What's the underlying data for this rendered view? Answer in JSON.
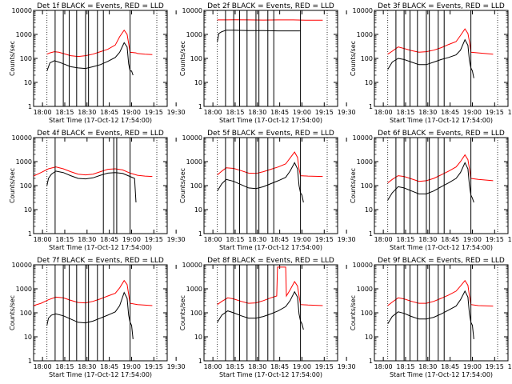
{
  "chart_data": [
    {
      "type": "line",
      "panel": 1,
      "title": "Det 1f  BLACK = Events, RED = LLD",
      "xlabel": "Start Time (17-Oct-12 17:54:00)",
      "ylabel": "Counts/sec",
      "xticks": [
        "18:00",
        "18:15",
        "18:30",
        "18:45",
        "19:00",
        "19:15",
        "19:30"
      ],
      "yticks": [
        "1",
        "10",
        "100",
        "1000",
        "10000"
      ],
      "ylim": [
        1,
        10000
      ],
      "yscale": "log",
      "series": [
        {
          "color": "#ff0000",
          "label": "RED = LLD",
          "x_min": [
            9,
            11,
            14,
            17,
            20,
            25,
            30,
            35,
            40,
            45,
            50,
            55,
            58,
            61,
            63,
            64,
            65,
            69,
            70,
            75,
            80
          ],
          "values": [
            150,
            170,
            190,
            180,
            160,
            130,
            120,
            130,
            150,
            190,
            240,
            360,
            800,
            1500,
            1000,
            420,
            180,
            170,
            160,
            150,
            145
          ]
        },
        {
          "color": "#000000",
          "label": "BLACK = Events",
          "x_min": [
            9,
            11,
            14,
            17,
            20,
            25,
            30,
            35,
            40,
            45,
            50,
            55,
            58,
            61,
            63,
            64,
            65,
            66,
            67
          ],
          "values": [
            30,
            65,
            80,
            70,
            60,
            45,
            40,
            38,
            45,
            55,
            75,
            110,
            180,
            450,
            300,
            60,
            30,
            30,
            20
          ]
        }
      ],
      "vlines_min": [
        14.5,
        20,
        24,
        29,
        35,
        37,
        43,
        47,
        65
      ]
    },
    {
      "type": "line",
      "panel": 2,
      "title": "Det 2f  BLACK = Events, RED = LLD",
      "xlabel": "Start Time (17-Oct-12 17:54:00)",
      "ylabel": "Counts/sec",
      "xticks": [
        "18:00",
        "18:15",
        "18:30",
        "18:45",
        "19:00",
        "19:15",
        "19:30"
      ],
      "yticks": [
        "1",
        "10",
        "100",
        "1000",
        "10000"
      ],
      "ylim": [
        1,
        10000
      ],
      "yscale": "log",
      "series": [
        {
          "color": "#ff0000",
          "label": "RED = LLD",
          "x_min": [
            9,
            15,
            20,
            30,
            40,
            50,
            60,
            70,
            80
          ],
          "values": [
            4000,
            4000,
            4050,
            4000,
            3950,
            4000,
            4000,
            3900,
            3900
          ]
        },
        {
          "color": "#000000",
          "label": "BLACK = Events",
          "x_min": [
            9,
            10,
            12,
            15,
            20,
            30,
            40,
            50,
            60,
            65
          ],
          "values": [
            500,
            1100,
            1300,
            1500,
            1500,
            1450,
            1450,
            1400,
            1400,
            1400
          ]
        }
      ],
      "vlines_min": [
        14.5,
        20,
        24,
        29,
        35,
        37,
        43,
        47,
        65
      ]
    },
    {
      "type": "line",
      "panel": 3,
      "title": "Det 3f  BLACK = Events, RED = LLD",
      "xlabel": "Start Time (17-Oct-12 17:54:00)",
      "ylabel": "Counts/sec",
      "xticks": [
        "18:00",
        "18:15",
        "18:30",
        "18:45",
        "19:00",
        "19:15",
        "19:30"
      ],
      "yticks": [
        "1",
        "10",
        "100",
        "1000",
        "10000"
      ],
      "ylim": [
        1,
        10000
      ],
      "yscale": "log",
      "series": [
        {
          "color": "#ff0000",
          "label": "RED = LLD",
          "x_min": [
            9,
            12,
            16,
            20,
            25,
            30,
            35,
            40,
            45,
            50,
            55,
            58,
            61,
            63,
            64,
            65,
            70,
            80
          ],
          "values": [
            150,
            200,
            300,
            260,
            210,
            180,
            190,
            220,
            280,
            380,
            500,
            900,
            1700,
            1100,
            500,
            180,
            170,
            150
          ]
        },
        {
          "color": "#000000",
          "label": "BLACK = Events",
          "x_min": [
            9,
            12,
            16,
            20,
            25,
            30,
            35,
            40,
            45,
            50,
            55,
            58,
            61,
            63,
            64,
            65,
            66,
            67
          ],
          "values": [
            35,
            70,
            100,
            90,
            70,
            55,
            55,
            70,
            90,
            110,
            140,
            220,
            600,
            350,
            80,
            40,
            30,
            15
          ]
        }
      ],
      "vlines_min": [
        14.5,
        20,
        24,
        29,
        35,
        37,
        43,
        47,
        65
      ]
    },
    {
      "type": "line",
      "panel": 4,
      "title": "Det 4f  BLACK = Events, RED = LLD",
      "xlabel": "Start Time (17-Oct-12 17:54:00)",
      "ylabel": "Counts/sec",
      "xticks": [
        "18:00",
        "18:15",
        "18:30",
        "18:45",
        "19:00",
        "19:15",
        "19:30"
      ],
      "yticks": [
        "1",
        "10",
        "100",
        "1000",
        "10000"
      ],
      "ylim": [
        1,
        10000
      ],
      "yscale": "log",
      "series": [
        {
          "color": "#ff0000",
          "label": "RED = LLD",
          "x_min": [
            0,
            5,
            10,
            15,
            20,
            25,
            30,
            35,
            40,
            45,
            50,
            55,
            60,
            65,
            70,
            75,
            80
          ],
          "values": [
            250,
            350,
            500,
            600,
            500,
            380,
            300,
            280,
            300,
            380,
            480,
            500,
            450,
            330,
            270,
            250,
            240
          ]
        },
        {
          "color": "#000000",
          "label": "BLACK = Events",
          "x_min": [
            9,
            10,
            12,
            15,
            20,
            25,
            30,
            35,
            40,
            45,
            50,
            55,
            60,
            65,
            68,
            69
          ],
          "values": [
            100,
            200,
            300,
            400,
            350,
            260,
            200,
            190,
            210,
            270,
            330,
            350,
            320,
            240,
            200,
            20
          ]
        }
      ],
      "vlines_min": [
        14.5,
        47,
        54,
        56,
        65
      ]
    },
    {
      "type": "line",
      "panel": 5,
      "title": "Det 5f  BLACK = Events, RED = LLD",
      "xlabel": "Start Time (17-Oct-12 17:54:00)",
      "ylabel": "Counts/sec",
      "xticks": [
        "18:00",
        "18:15",
        "18:30",
        "18:45",
        "19:00",
        "19:15",
        "19:30"
      ],
      "yticks": [
        "1",
        "10",
        "100",
        "1000",
        "10000"
      ],
      "ylim": [
        1,
        10000
      ],
      "yscale": "log",
      "series": [
        {
          "color": "#ff0000",
          "label": "RED = LLD",
          "x_min": [
            9,
            12,
            15,
            20,
            25,
            30,
            35,
            40,
            45,
            50,
            55,
            58,
            61,
            63,
            64,
            65,
            70,
            80
          ],
          "values": [
            280,
            400,
            550,
            520,
            420,
            330,
            320,
            380,
            480,
            600,
            800,
            1400,
            2500,
            1500,
            500,
            260,
            250,
            240
          ]
        },
        {
          "color": "#000000",
          "label": "BLACK = Events",
          "x_min": [
            9,
            12,
            15,
            20,
            25,
            30,
            35,
            40,
            45,
            50,
            55,
            58,
            61,
            63,
            64,
            65,
            66,
            67
          ],
          "values": [
            60,
            120,
            180,
            150,
            110,
            80,
            75,
            90,
            120,
            160,
            220,
            400,
            900,
            500,
            100,
            50,
            40,
            20
          ]
        }
      ],
      "vlines_min": [
        14.5,
        20,
        24,
        29,
        35,
        37,
        43,
        47,
        65
      ]
    },
    {
      "type": "line",
      "panel": 6,
      "title": "Det 6f  BLACK = Events, RED = LLD",
      "xlabel": "Start Time (17-Oct-12 17:54:00)",
      "ylabel": "Counts/sec",
      "xticks": [
        "18:00",
        "18:15",
        "18:30",
        "18:45",
        "19:00",
        "19:15",
        "19:30"
      ],
      "yticks": [
        "1",
        "10",
        "100",
        "1000",
        "10000"
      ],
      "ylim": [
        1,
        10000
      ],
      "yscale": "log",
      "series": [
        {
          "color": "#ff0000",
          "label": "RED = LLD",
          "x_min": [
            9,
            12,
            16,
            20,
            25,
            30,
            35,
            40,
            45,
            50,
            55,
            58,
            61,
            63,
            64,
            65,
            70,
            80
          ],
          "values": [
            130,
            180,
            260,
            240,
            190,
            150,
            160,
            200,
            280,
            400,
            600,
            1000,
            1900,
            1200,
            500,
            200,
            180,
            160
          ]
        },
        {
          "color": "#000000",
          "label": "BLACK = Events",
          "x_min": [
            9,
            12,
            16,
            20,
            25,
            30,
            35,
            40,
            45,
            50,
            55,
            58,
            61,
            63,
            64,
            65,
            66,
            67
          ],
          "values": [
            25,
            50,
            90,
            80,
            60,
            45,
            45,
            60,
            90,
            130,
            200,
            350,
            900,
            500,
            100,
            40,
            30,
            20
          ]
        }
      ],
      "vlines_min": [
        14.5,
        20,
        24,
        29,
        35,
        37,
        43,
        47,
        65
      ]
    },
    {
      "type": "line",
      "panel": 7,
      "title": "Det 7f  BLACK = Events, RED = LLD",
      "xlabel": "Start Time (17-Oct-12 17:54:00)",
      "ylabel": "Counts/sec",
      "xticks": [
        "18:00",
        "18:15",
        "18:30",
        "18:45",
        "19:00",
        "19:15",
        "19:30"
      ],
      "yticks": [
        "1",
        "10",
        "100",
        "1000",
        "10000"
      ],
      "ylim": [
        1,
        10000
      ],
      "yscale": "log",
      "series": [
        {
          "color": "#ff0000",
          "label": "RED = LLD",
          "x_min": [
            0,
            5,
            10,
            15,
            20,
            25,
            30,
            35,
            40,
            45,
            50,
            55,
            58,
            61,
            63,
            64,
            65,
            70,
            80
          ],
          "values": [
            200,
            250,
            350,
            450,
            420,
            330,
            270,
            260,
            300,
            380,
            500,
            650,
            1100,
            2200,
            1500,
            600,
            250,
            220,
            200
          ]
        },
        {
          "color": "#000000",
          "label": "BLACK = Events",
          "x_min": [
            9,
            10,
            12,
            15,
            20,
            25,
            30,
            35,
            40,
            45,
            50,
            55,
            58,
            61,
            63,
            64,
            65,
            66,
            67
          ],
          "values": [
            30,
            60,
            80,
            90,
            75,
            55,
            40,
            38,
            45,
            60,
            80,
            110,
            200,
            700,
            400,
            80,
            40,
            30,
            8
          ]
        }
      ],
      "vlines_min": [
        14.5,
        20,
        24,
        29,
        35,
        37,
        43,
        47,
        65
      ]
    },
    {
      "type": "line",
      "panel": 8,
      "title": "Det 8f  BLACK = Events, RED = LLD",
      "xlabel": "Start Time (17-Oct-12 17:54:00)",
      "ylabel": "Counts/sec",
      "xticks": [
        "18:00",
        "18:15",
        "18:30",
        "18:45",
        "19:00",
        "19:15",
        "19:30"
      ],
      "yticks": [
        "1",
        "10",
        "100",
        "1000",
        "10000"
      ],
      "ylim": [
        1,
        10000
      ],
      "yscale": "log",
      "series": [
        {
          "color": "#ff0000",
          "label": "RED = LLD",
          "x_min": [
            9,
            12,
            16,
            20,
            25,
            30,
            35,
            40,
            45,
            49,
            49.5,
            55,
            55.5,
            58,
            61,
            63,
            64,
            65,
            70,
            80
          ],
          "values": [
            220,
            300,
            420,
            380,
            300,
            250,
            260,
            320,
            420,
            500,
            8000,
            8000,
            500,
            900,
            2000,
            1300,
            500,
            220,
            210,
            200
          ]
        },
        {
          "color": "#000000",
          "label": "BLACK = Events",
          "x_min": [
            9,
            12,
            16,
            20,
            25,
            30,
            35,
            40,
            45,
            50,
            55,
            58,
            61,
            63,
            64,
            65,
            66,
            67
          ],
          "values": [
            40,
            80,
            120,
            100,
            75,
            60,
            60,
            70,
            90,
            120,
            180,
            320,
            750,
            450,
            90,
            45,
            35,
            20
          ]
        }
      ],
      "vlines_min": [
        14.5,
        20,
        24,
        29,
        35,
        37,
        43,
        47,
        65
      ]
    },
    {
      "type": "line",
      "panel": 9,
      "title": "Det 9f  BLACK = Events, RED = LLD",
      "xlabel": "Start Time (17-Oct-12 17:54:00)",
      "ylabel": "Counts/sec",
      "xticks": [
        "18:00",
        "18:15",
        "18:30",
        "18:45",
        "19:00",
        "19:15",
        "19:30"
      ],
      "yticks": [
        "1",
        "10",
        "100",
        "1000",
        "10000"
      ],
      "ylim": [
        1,
        10000
      ],
      "yscale": "log",
      "series": [
        {
          "color": "#ff0000",
          "label": "RED = LLD",
          "x_min": [
            9,
            12,
            16,
            20,
            25,
            30,
            35,
            40,
            45,
            50,
            55,
            58,
            61,
            63,
            64,
            65,
            70,
            80
          ],
          "values": [
            200,
            280,
            420,
            380,
            300,
            250,
            250,
            300,
            400,
            550,
            800,
            1300,
            2200,
            1400,
            500,
            220,
            200,
            190
          ]
        },
        {
          "color": "#000000",
          "label": "BLACK = Events",
          "x_min": [
            9,
            12,
            16,
            20,
            25,
            30,
            35,
            40,
            45,
            50,
            55,
            58,
            61,
            63,
            64,
            65,
            66,
            67
          ],
          "values": [
            35,
            70,
            110,
            95,
            70,
            55,
            55,
            65,
            90,
            130,
            190,
            350,
            800,
            450,
            90,
            40,
            30,
            8
          ]
        }
      ],
      "vlines_min": [
        14.5,
        20,
        24,
        29,
        35,
        37,
        43,
        47,
        65
      ]
    }
  ]
}
